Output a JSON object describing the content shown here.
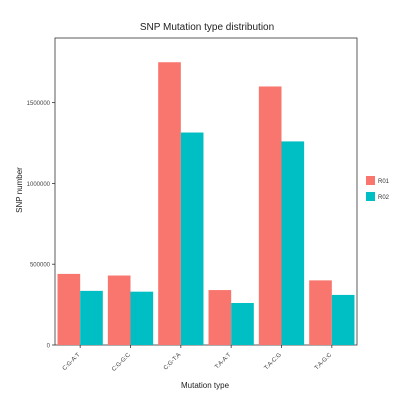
{
  "chart_data": {
    "type": "bar",
    "title": "SNP  Mutation type distribution",
    "xlabel": "Mutation type",
    "ylabel": "SNP number",
    "categories": [
      "C:G-A:T",
      "C:G-G:C",
      "C:G-T:A",
      "T:A-A:T",
      "T:A-C:G",
      "T:A-G:C"
    ],
    "series": [
      {
        "name": "R01",
        "color": "#F8766D",
        "values": [
          440000,
          430000,
          1750000,
          340000,
          1600000,
          400000
        ]
      },
      {
        "name": "R02",
        "color": "#00BFC4",
        "values": [
          335000,
          330000,
          1315000,
          260000,
          1260000,
          310000
        ]
      }
    ],
    "ylim": [
      0,
      1900000
    ],
    "yticks": [
      0,
      500000,
      1000000,
      1500000
    ],
    "ytick_labels": [
      "0",
      "500000",
      "1000000",
      "1500000"
    ],
    "grid": false,
    "legend_position": "right",
    "background": "#ffffff"
  }
}
